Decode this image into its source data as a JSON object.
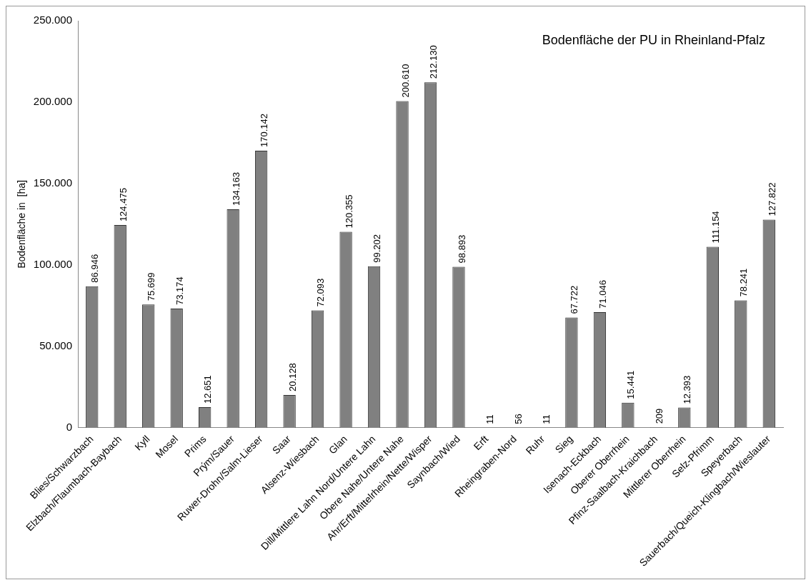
{
  "chart_data": {
    "type": "bar",
    "title": "Bodenfläche der PU in Rheinland-Pfalz",
    "ylabel": "Bodenfläche in  [ha]",
    "categories": [
      "Blies/Schwarzbach",
      "Elzbach/Flaumbach-Baybach",
      "Kyll",
      "Mosel",
      "Prims",
      "Prým/Sauer",
      "Ruwer-Drohn/Salm-Lieser",
      "Saar",
      "Alsenz-Wiesbach",
      "Glan",
      "Dill/Mittlere Lahn Nord/Untere Lahn",
      "Obere Nahe/Untere Nahe",
      "Ahr/Erft/Mittelrhein/Nette/Wisper",
      "Saynbach/Wied",
      "Erft",
      "Rheingraben-Nord",
      "Ruhr",
      "Sieg",
      "Isenach-Eckbach",
      "Oberer Oberrhein",
      "Pfinz-Saalbach-Kraichbach",
      "Mittlerer Oberrhein",
      "Selz-Pfrimm",
      "Speyerbach",
      "Sauerbach/Queich-Klingbach/Wieslauter"
    ],
    "values": [
      86946,
      124475,
      75699,
      73174,
      12651,
      134163,
      170142,
      20128,
      72093,
      120355,
      99202,
      200610,
      212130,
      98893,
      11,
      56,
      11,
      67722,
      71046,
      15441,
      209,
      12393,
      111154,
      78241,
      127822
    ],
    "value_labels": [
      "86.946",
      "124.475",
      "75.699",
      "73.174",
      "12.651",
      "134.163",
      "170.142",
      "20.128",
      "72.093",
      "120.355",
      "99.202",
      "200.610",
      "212.130",
      "98.893",
      "11",
      "56",
      "11",
      "67.722",
      "71.046",
      "15.441",
      "209",
      "12.393",
      "111.154",
      "78.241",
      "127.822"
    ],
    "color": "#808080",
    "ylim": [
      0,
      250000
    ],
    "yticks": [
      {
        "value": 0,
        "label": "0"
      },
      {
        "value": 50000,
        "label": "50.000"
      },
      {
        "value": 100000,
        "label": "100.000"
      },
      {
        "value": 150000,
        "label": "150.000"
      },
      {
        "value": 200000,
        "label": "200.000"
      },
      {
        "value": 250000,
        "label": "250.000"
      }
    ],
    "grid": false,
    "legend": false
  }
}
